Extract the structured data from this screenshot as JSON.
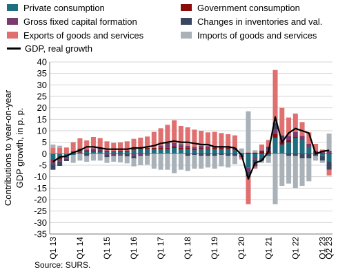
{
  "chart_data": {
    "type": "bar",
    "stacked": true,
    "ylabel": "Contributions to year-on-year GDP growth, in p. p.",
    "ylim": [
      -35,
      40
    ],
    "yticks": [
      -35,
      -30,
      -25,
      -20,
      -15,
      -10,
      -5,
      0,
      5,
      10,
      15,
      20,
      25,
      30,
      35,
      40
    ],
    "grid": true,
    "legend_position": "top",
    "x_tick_labels": [
      {
        "label": "Q1 13",
        "index": 0
      },
      {
        "label": "Q1 14",
        "index": 4
      },
      {
        "label": "Q1 15",
        "index": 8
      },
      {
        "label": "Q1 16",
        "index": 12
      },
      {
        "label": "Q1 17",
        "index": 16
      },
      {
        "label": "Q1 18",
        "index": 20
      },
      {
        "label": "Q1 19",
        "index": 24
      },
      {
        "label": "Q1 20",
        "index": 28
      },
      {
        "label": "Q1 21",
        "index": 32
      },
      {
        "label": "Q1 22",
        "index": 36
      },
      {
        "label": "Q1 23",
        "index": 40
      },
      {
        "label": "Q2 23",
        "index": 41
      }
    ],
    "categories": [
      "Q1 13",
      "Q2 13",
      "Q3 13",
      "Q4 13",
      "Q1 14",
      "Q2 14",
      "Q3 14",
      "Q4 14",
      "Q1 15",
      "Q2 15",
      "Q3 15",
      "Q4 15",
      "Q1 16",
      "Q2 16",
      "Q3 16",
      "Q4 16",
      "Q1 17",
      "Q2 17",
      "Q3 17",
      "Q4 17",
      "Q1 18",
      "Q2 18",
      "Q3 18",
      "Q4 18",
      "Q1 19",
      "Q2 19",
      "Q3 19",
      "Q4 19",
      "Q1 20",
      "Q2 20",
      "Q3 20",
      "Q4 20",
      "Q1 21",
      "Q2 21",
      "Q3 21",
      "Q4 21",
      "Q1 22",
      "Q2 22",
      "Q3 22",
      "Q4 22",
      "Q1 23",
      "Q2 23"
    ],
    "series": [
      {
        "name": "Private consumption",
        "color": "#1f6e80",
        "values": [
          -2.5,
          -2,
          -1.5,
          -0.5,
          0.5,
          1,
          1,
          1,
          1,
          0.8,
          1,
          1,
          1.5,
          2,
          2,
          2,
          2,
          2,
          2.5,
          2,
          2,
          1.5,
          2,
          1.8,
          2,
          2,
          2,
          1.5,
          -1,
          -6,
          -2,
          -2,
          -1,
          7,
          4,
          5,
          7,
          6,
          3,
          0.5,
          -1,
          -3.5
        ]
      },
      {
        "name": "Government consumption",
        "color": "#8b0a0a",
        "values": [
          -0.5,
          -0.3,
          -0.2,
          0,
          0.2,
          0.3,
          0.3,
          0.3,
          0.4,
          0.4,
          0.4,
          0.4,
          0.5,
          0.5,
          0.5,
          0.5,
          0.6,
          0.6,
          0.6,
          0.6,
          0.5,
          0.5,
          0.5,
          0.5,
          0.5,
          0.5,
          0.5,
          0.5,
          0.3,
          0.5,
          0.5,
          1,
          1,
          1.5,
          1,
          0.8,
          0.5,
          0.3,
          0.3,
          0.3,
          0.3,
          0.3
        ]
      },
      {
        "name": "Gross fixed capital formation",
        "color": "#7a3a6e",
        "values": [
          -1.5,
          -1,
          -0.5,
          0,
          0.5,
          0.5,
          0.5,
          0.5,
          -0.5,
          -0.5,
          -0.3,
          -0.2,
          -1,
          -0.5,
          -0.3,
          0,
          1,
          1.5,
          1.5,
          1,
          1,
          1,
          1,
          1,
          1,
          1,
          1,
          0.5,
          -0.5,
          -2,
          -0.5,
          0.5,
          1,
          2,
          2,
          2,
          2,
          1.5,
          1,
          0.5,
          1,
          1
        ]
      },
      {
        "name": "Changes in inventories and val.",
        "color": "#3a4660",
        "values": [
          -2.5,
          -2,
          -1,
          1,
          1,
          -1,
          0.5,
          0.5,
          -1,
          -0.5,
          -0.5,
          -1,
          -1,
          -0.5,
          -0.5,
          0,
          0,
          0.5,
          0,
          0.5,
          -1,
          -0.5,
          -1,
          -1,
          -1,
          -0.5,
          -1,
          -1,
          0,
          -2,
          -3,
          -1,
          1,
          3,
          1,
          -1,
          -1,
          -2,
          -2,
          -1,
          -2,
          -3.5
        ]
      },
      {
        "name": "Exports of goods and services",
        "color": "#e07070",
        "values": [
          2.5,
          2.5,
          2.5,
          4,
          4.5,
          4,
          5,
          4.5,
          4,
          3.5,
          3.5,
          4,
          4.5,
          4.5,
          5,
          7,
          7.5,
          8,
          10,
          8,
          8,
          7.5,
          6.5,
          6,
          6,
          5.5,
          5,
          5.5,
          -1,
          -12,
          -1,
          2.5,
          3,
          23,
          12,
          8,
          8,
          6,
          5,
          3,
          0.5,
          -2.5
        ]
      },
      {
        "name": "Imports of goods and services",
        "color": "#a9b2b9",
        "values": [
          1.5,
          1,
          0.3,
          -3.5,
          -3,
          -2.5,
          -3,
          -3,
          -2.5,
          -2.5,
          -3,
          -3,
          -3.5,
          -4,
          -4,
          -6.5,
          -7,
          -7,
          -8.5,
          -7,
          -6.5,
          -6,
          -5.5,
          -5,
          -5.5,
          -5,
          -5,
          -3.5,
          2,
          18,
          1,
          -1,
          -3,
          -22,
          -14,
          -12,
          -14,
          -12,
          -10,
          -2,
          -1,
          7.5
        ]
      }
    ],
    "line": {
      "name": "GDP, real growth",
      "color": "#000000",
      "values": [
        -3.5,
        -1.5,
        -1,
        0.5,
        1.5,
        3,
        3,
        2.5,
        2,
        2,
        2,
        2,
        2.5,
        2.5,
        3,
        3.5,
        4.5,
        5,
        5.5,
        5,
        5,
        4.5,
        4,
        4,
        3,
        3,
        3,
        2.5,
        -0.5,
        -11,
        -4,
        -3,
        1,
        16,
        5,
        9,
        11,
        10,
        9,
        0,
        1,
        1.5
      ]
    }
  },
  "source": "Source: SURS."
}
